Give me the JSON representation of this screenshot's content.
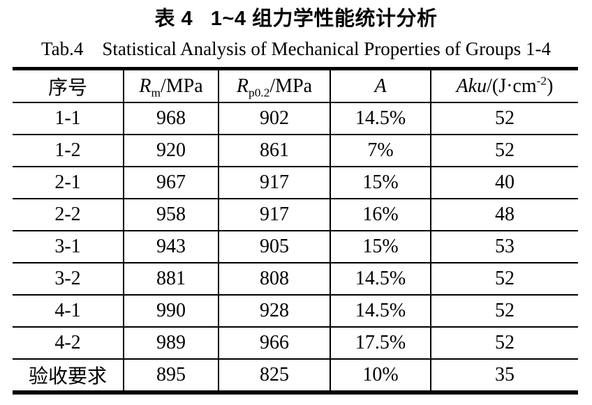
{
  "caption": {
    "zh": "表 4   1~4 组力学性能统计分析",
    "en": "Tab.4    Statistical Analysis of Mechanical Properties of Groups 1-4"
  },
  "table": {
    "columns": [
      {
        "key": "xuhao",
        "label_parts": [
          {
            "t": "序号"
          }
        ]
      },
      {
        "key": "rm",
        "label_parts": [
          {
            "t": "R",
            "style": "italic"
          },
          {
            "t": "m",
            "style": "sub"
          },
          {
            "t": "/MPa"
          }
        ]
      },
      {
        "key": "rp02",
        "label_parts": [
          {
            "t": "R",
            "style": "italic"
          },
          {
            "t": "p0.2",
            "style": "sub"
          },
          {
            "t": "/MPa"
          }
        ]
      },
      {
        "key": "a",
        "label_parts": [
          {
            "t": "A",
            "style": "italic"
          }
        ]
      },
      {
        "key": "aku",
        "label_parts": [
          {
            "t": "Aku",
            "style": "italic"
          },
          {
            "t": "/(J·cm"
          },
          {
            "t": "-2",
            "style": "sup"
          },
          {
            "t": ")"
          }
        ]
      }
    ],
    "rows": [
      {
        "cells": [
          "1-1",
          "968",
          "902",
          "14.5%",
          "52"
        ]
      },
      {
        "cells": [
          "1-2",
          "920",
          "861",
          "7%",
          "52"
        ]
      },
      {
        "cells": [
          "2-1",
          "967",
          "917",
          "15%",
          "40"
        ]
      },
      {
        "cells": [
          "2-2",
          "958",
          "917",
          "16%",
          "48"
        ]
      },
      {
        "cells": [
          "3-1",
          "943",
          "905",
          "15%",
          "53"
        ]
      },
      {
        "cells": [
          "3-2",
          "881",
          "808",
          "14.5%",
          "52"
        ]
      },
      {
        "cells": [
          "4-1",
          "990",
          "928",
          "14.5%",
          "52"
        ]
      },
      {
        "cells": [
          "4-2",
          "989",
          "966",
          "17.5%",
          "52"
        ]
      },
      {
        "cells": [
          "验收要求",
          "895",
          "825",
          "10%",
          "35"
        ]
      }
    ]
  },
  "colors": {
    "text": "#000000",
    "border": "#000000",
    "background": "#ffffff"
  }
}
